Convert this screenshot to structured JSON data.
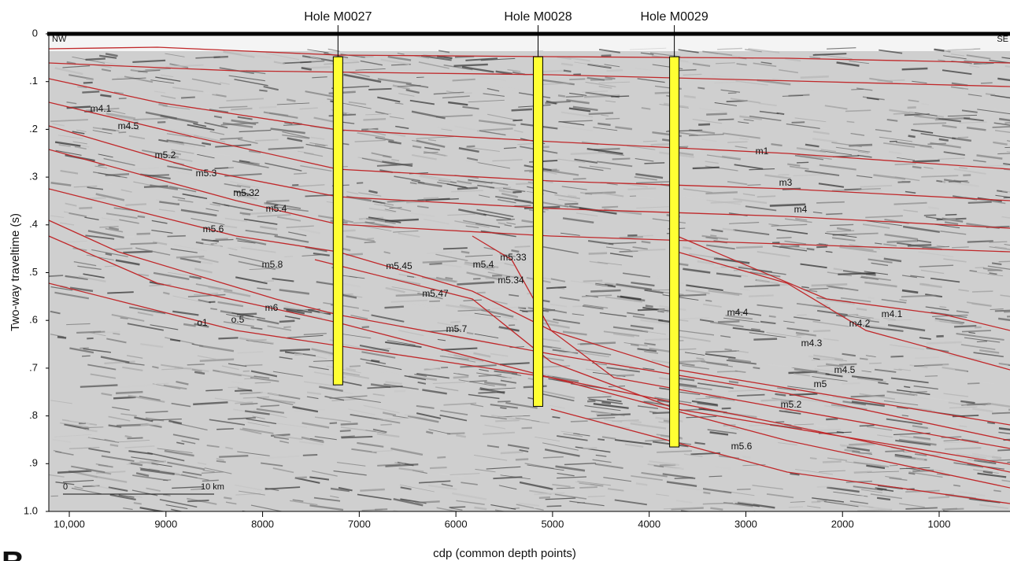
{
  "chart_data": {
    "type": "seismic-section",
    "xlabel": "cdp (common depth points)",
    "ylabel": "Two-way traveltime (s)",
    "xlim": [
      10212,
      267
    ],
    "xticks": [
      {
        "value": 10000,
        "label": "10,000"
      },
      9000,
      8000,
      7000,
      6000,
      5000,
      4000,
      3000,
      2000,
      1000
    ],
    "ylim": [
      0,
      1
    ],
    "yticks": [
      0,
      {
        "value": 0.1,
        "label": ".1"
      },
      {
        "value": 0.2,
        "label": ".2"
      },
      {
        "value": 0.3,
        "label": ".3"
      },
      {
        "value": 0.4,
        "label": ".4"
      },
      {
        "value": 0.5,
        "label": ".5"
      },
      {
        "value": 0.6,
        "label": ".6"
      },
      {
        "value": 0.7,
        "label": ".7"
      },
      {
        "value": 0.8,
        "label": ".8"
      },
      {
        "value": 0.9,
        "label": ".9"
      },
      {
        "value": 1,
        "label": "1.0"
      }
    ],
    "wells": [
      {
        "name": "Hole M0027",
        "cdp": 7220,
        "top": 0.048,
        "bottom": 0.735
      },
      {
        "name": "Hole M0028",
        "cdp": 5150,
        "top": 0.048,
        "bottom": 0.78
      },
      {
        "name": "Hole M0029",
        "cdp": 3740,
        "top": 0.048,
        "bottom": 0.865
      }
    ],
    "well_color": "#ffff33",
    "horizon_color": "#c0282a",
    "left_direction": "NW",
    "right_direction": "SE",
    "scale_bar": [
      "0",
      "10 km"
    ],
    "horizon_labels": [
      "m4.1",
      "m4.5",
      "m5.2",
      "m5.3",
      "m5.32",
      "m5.4",
      "m5.6",
      "m5.8",
      "m6",
      "o1",
      "o.5",
      "m5.45",
      "m5.4",
      "m5.33",
      "m5.34",
      "m5.47",
      "m5.7",
      "m1",
      "m3",
      "m4",
      "m4.4",
      "m4.2",
      "m4.1",
      "m4.3",
      "m4.5",
      "m5",
      "m5.2",
      "m5.6"
    ],
    "panel_label": "B"
  }
}
